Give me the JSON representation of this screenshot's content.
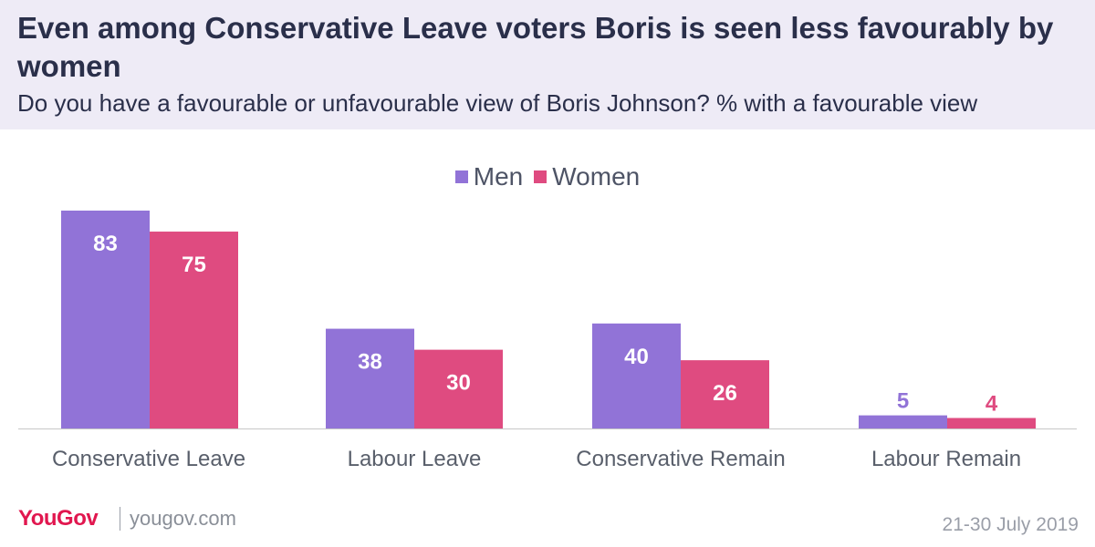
{
  "header": {
    "title": "Even among Conservative Leave voters Boris is seen less favourably by women",
    "subtitle": "Do you have a favourable or unfavourable view of Boris Johnson? % with a favourable view"
  },
  "legend": {
    "men": "Men",
    "women": "Women"
  },
  "footer": {
    "logo": "YouGov",
    "site": "yougov.com",
    "date": "21-30 July 2019"
  },
  "colors": {
    "men": "#9173d7",
    "women": "#df4b80",
    "header_bg": "#eeebf6",
    "text_dark": "#2a2f4a",
    "brand": "#e1174f"
  },
  "chart_data": {
    "type": "bar",
    "title": "Even among Conservative Leave voters Boris is seen less favourably by women",
    "xlabel": "",
    "ylabel": "",
    "ylim": [
      0,
      83
    ],
    "categories": [
      "Conservative Leave",
      "Labour Leave",
      "Conservative Remain",
      "Labour Remain"
    ],
    "series": [
      {
        "name": "Men",
        "values": [
          83,
          38,
          40,
          5
        ]
      },
      {
        "name": "Women",
        "values": [
          75,
          30,
          26,
          4
        ]
      }
    ],
    "legend_position": "top-center",
    "grid": false
  }
}
